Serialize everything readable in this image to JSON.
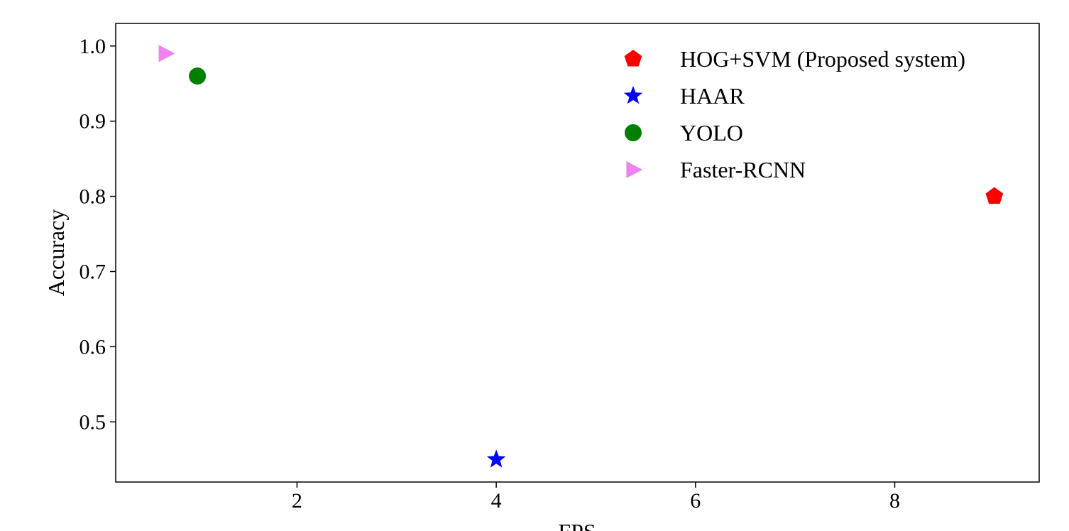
{
  "chart_data": {
    "type": "scatter",
    "title": "",
    "xlabel": "FPS",
    "ylabel": "Accuracy",
    "xlim": [
      0.18,
      9.45
    ],
    "ylim": [
      0.42,
      1.03
    ],
    "xticks": [
      2,
      4,
      6,
      8
    ],
    "xtick_labels": [
      "2",
      "4",
      "6",
      "8"
    ],
    "yticks": [
      0.5,
      0.6,
      0.7,
      0.8,
      0.9,
      1.0
    ],
    "ytick_labels": [
      "0.5",
      "0.6",
      "0.7",
      "0.8",
      "0.9",
      "1.0"
    ],
    "grid": false,
    "legend_position": "top-right",
    "series": [
      {
        "name": "HOG+SVM (Proposed system)",
        "marker": "pentagon",
        "color": "#ff0000",
        "points": [
          {
            "x": 9.0,
            "y": 0.8
          }
        ]
      },
      {
        "name": "HAAR",
        "marker": "star",
        "color": "#0000ff",
        "points": [
          {
            "x": 4.0,
            "y": 0.45
          }
        ]
      },
      {
        "name": "YOLO",
        "marker": "circle",
        "color": "#008000",
        "points": [
          {
            "x": 1.0,
            "y": 0.96
          }
        ]
      },
      {
        "name": "Faster-RCNN",
        "marker": "triangle-right",
        "color": "#ee82ee",
        "points": [
          {
            "x": 0.68,
            "y": 0.99
          }
        ]
      }
    ]
  }
}
